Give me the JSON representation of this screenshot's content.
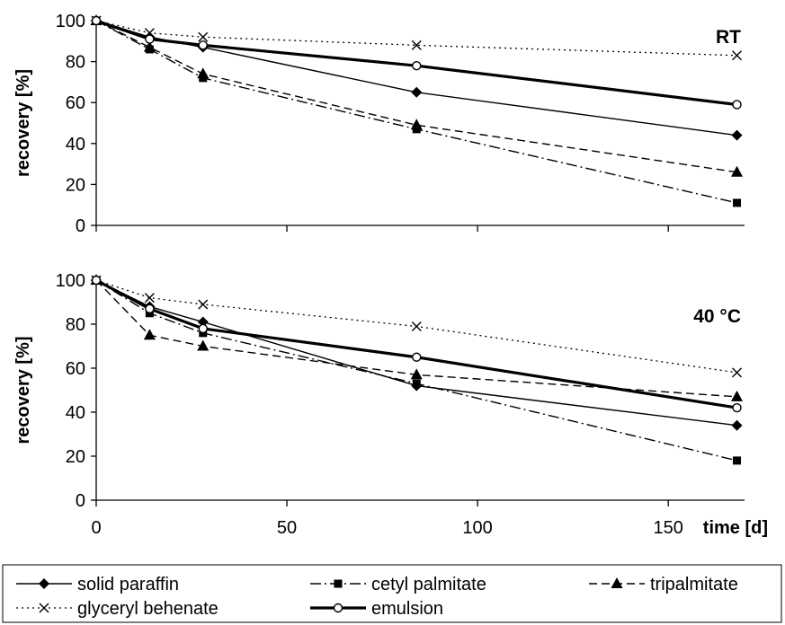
{
  "legend_colors": {
    "line": "#000000",
    "background": "#ffffff"
  },
  "chart_data": [
    {
      "type": "line",
      "annotation": "RT",
      "ylabel": "recovery [%]",
      "xlabel": "",
      "xlim": [
        0,
        170
      ],
      "ylim": [
        0,
        100
      ],
      "xticks": [
        0,
        50,
        100,
        150
      ],
      "yticks": [
        0,
        20,
        40,
        60,
        80,
        100
      ],
      "yticklabels": [
        "0",
        "20",
        "40",
        "60",
        "80",
        "100"
      ],
      "series": [
        {
          "name": "solid paraffin",
          "marker": "diamond",
          "dash": "solid",
          "x": [
            0,
            14,
            28,
            84,
            168
          ],
          "y": [
            100,
            92,
            87,
            65,
            44
          ]
        },
        {
          "name": "cetyl palmitate",
          "marker": "square",
          "dash": "dashdot",
          "x": [
            0,
            14,
            28,
            84,
            168
          ],
          "y": [
            100,
            86,
            72,
            47,
            11
          ]
        },
        {
          "name": "tripalmitate",
          "marker": "triangle",
          "dash": "dashed",
          "x": [
            0,
            14,
            28,
            84,
            168
          ],
          "y": [
            100,
            87,
            74,
            49,
            26
          ]
        },
        {
          "name": "glyceryl behenate",
          "marker": "x",
          "dash": "dotted",
          "x": [
            0,
            14,
            28,
            84,
            168
          ],
          "y": [
            100,
            94,
            92,
            88,
            83
          ]
        },
        {
          "name": "emulsion",
          "marker": "circle",
          "dash": "thick",
          "x": [
            0,
            14,
            28,
            84,
            168
          ],
          "y": [
            100,
            91,
            88,
            78,
            59
          ]
        }
      ]
    },
    {
      "type": "line",
      "annotation": "40 °C",
      "ylabel": "recovery [%]",
      "xlabel": "time [d]",
      "xlim": [
        0,
        170
      ],
      "ylim": [
        0,
        100
      ],
      "xticks": [
        0,
        50,
        100,
        150
      ],
      "xticklabels": [
        "0",
        "50",
        "100",
        "150"
      ],
      "yticks": [
        0,
        20,
        40,
        60,
        80,
        100
      ],
      "yticklabels": [
        "0",
        "20",
        "40",
        "60",
        "80",
        "100"
      ],
      "series": [
        {
          "name": "solid paraffin",
          "marker": "diamond",
          "dash": "solid",
          "x": [
            0,
            14,
            28,
            84,
            168
          ],
          "y": [
            100,
            88,
            81,
            52,
            34
          ]
        },
        {
          "name": "cetyl palmitate",
          "marker": "square",
          "dash": "dashdot",
          "x": [
            0,
            14,
            28,
            84,
            168
          ],
          "y": [
            100,
            85,
            76,
            53,
            18
          ]
        },
        {
          "name": "tripalmitate",
          "marker": "triangle",
          "dash": "dashed",
          "x": [
            0,
            14,
            28,
            84,
            168
          ],
          "y": [
            100,
            75,
            70,
            57,
            47
          ]
        },
        {
          "name": "glyceryl behenate",
          "marker": "x",
          "dash": "dotted",
          "x": [
            0,
            14,
            28,
            84,
            168
          ],
          "y": [
            100,
            92,
            89,
            79,
            58
          ]
        },
        {
          "name": "emulsion",
          "marker": "circle",
          "dash": "thick",
          "x": [
            0,
            14,
            28,
            84,
            168
          ],
          "y": [
            100,
            87,
            78,
            65,
            42
          ]
        }
      ]
    }
  ],
  "legend": {
    "placement": "bottom",
    "items": [
      {
        "label": "solid paraffin",
        "marker": "diamond",
        "dash": "solid"
      },
      {
        "label": "cetyl palmitate",
        "marker": "square",
        "dash": "dashdot"
      },
      {
        "label": "tripalmitate",
        "marker": "triangle",
        "dash": "dashed"
      },
      {
        "label": "glyceryl behenate",
        "marker": "x",
        "dash": "dotted"
      },
      {
        "label": "emulsion",
        "marker": "circle",
        "dash": "thick"
      }
    ]
  }
}
